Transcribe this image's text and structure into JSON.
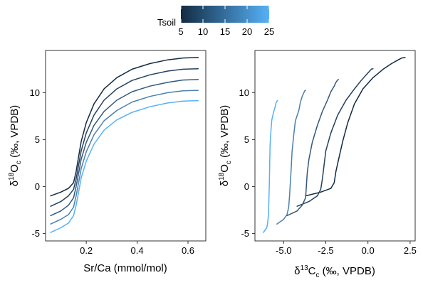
{
  "legend": {
    "title": "Tsoil",
    "ticks": [
      5,
      10,
      15,
      20,
      25
    ],
    "range": [
      5,
      25
    ],
    "colors": [
      "#132b43",
      "#56b1f7"
    ]
  },
  "chart_data": [
    {
      "type": "line",
      "title": "",
      "xlabel": "Sr/Ca (mmol/mol)",
      "ylabel": {
        "prefix": "δ",
        "sup": "18",
        "main": "O",
        "sub": "c",
        "suffix": " (‰, VPDB)"
      },
      "xlim": [
        0.04,
        0.67
      ],
      "ylim": [
        -5.8,
        14.5
      ],
      "xticks": [
        0.2,
        0.4,
        0.6
      ],
      "xtick_labels": [
        "0.2",
        "0.4",
        "0.6"
      ],
      "yticks": [
        -5,
        0,
        5,
        10
      ],
      "ytick_labels": [
        "-5",
        "0",
        "5",
        "10"
      ],
      "grid": false,
      "series": [
        {
          "tsoil": 5,
          "color": "#132b43",
          "x": [
            0.06,
            0.1,
            0.13,
            0.15,
            0.16,
            0.17,
            0.18,
            0.2,
            0.23,
            0.27,
            0.32,
            0.38,
            0.45,
            0.52,
            0.58,
            0.64
          ],
          "y": [
            -1.0,
            -0.6,
            -0.2,
            0.4,
            1.6,
            3.2,
            4.8,
            6.8,
            8.8,
            10.4,
            11.6,
            12.5,
            13.1,
            13.5,
            13.7,
            13.75
          ]
        },
        {
          "tsoil": 10,
          "color": "#23415e",
          "x": [
            0.06,
            0.1,
            0.13,
            0.15,
            0.16,
            0.17,
            0.18,
            0.2,
            0.23,
            0.27,
            0.32,
            0.38,
            0.45,
            0.52,
            0.58,
            0.64
          ],
          "y": [
            -2.1,
            -1.6,
            -1.0,
            -0.3,
            0.8,
            2.3,
            3.8,
            5.7,
            7.6,
            9.2,
            10.4,
            11.3,
            11.9,
            12.3,
            12.5,
            12.55
          ]
        },
        {
          "tsoil": 15,
          "color": "#33587b",
          "x": [
            0.06,
            0.1,
            0.13,
            0.15,
            0.16,
            0.17,
            0.18,
            0.2,
            0.23,
            0.27,
            0.32,
            0.38,
            0.45,
            0.52,
            0.58,
            0.64
          ],
          "y": [
            -3.1,
            -2.6,
            -2.0,
            -1.2,
            0.0,
            1.4,
            2.9,
            4.7,
            6.5,
            8.0,
            9.2,
            10.1,
            10.7,
            11.1,
            11.35,
            11.4
          ]
        },
        {
          "tsoil": 20,
          "color": "#4a80b0",
          "x": [
            0.06,
            0.1,
            0.13,
            0.15,
            0.16,
            0.17,
            0.18,
            0.2,
            0.23,
            0.27,
            0.32,
            0.38,
            0.45,
            0.52,
            0.58,
            0.64
          ],
          "y": [
            -4.0,
            -3.5,
            -3.0,
            -2.2,
            -1.0,
            0.4,
            1.9,
            3.7,
            5.5,
            7.0,
            8.1,
            9.0,
            9.6,
            10.0,
            10.2,
            10.25
          ]
        },
        {
          "tsoil": 25,
          "color": "#56b1f7",
          "x": [
            0.06,
            0.1,
            0.13,
            0.15,
            0.16,
            0.17,
            0.18,
            0.2,
            0.23,
            0.27,
            0.32,
            0.38,
            0.45,
            0.52,
            0.58,
            0.64
          ],
          "y": [
            -4.9,
            -4.4,
            -3.9,
            -3.1,
            -2.0,
            -0.6,
            0.9,
            2.7,
            4.5,
            6.0,
            7.1,
            7.9,
            8.5,
            8.9,
            9.1,
            9.15
          ]
        }
      ]
    },
    {
      "type": "line",
      "title": "",
      "xlabel": {
        "prefix": "δ",
        "sup": "13",
        "main": "C",
        "sub": "c",
        "suffix": " (‰, VPDB)"
      },
      "ylabel": {
        "prefix": "δ",
        "sup": "18",
        "main": "O",
        "sub": "c",
        "suffix": " (‰, VPDB)"
      },
      "xlim": [
        -6.7,
        2.8
      ],
      "ylim": [
        -5.8,
        14.5
      ],
      "xticks": [
        -5.0,
        -2.5,
        0.0,
        2.5
      ],
      "xtick_labels": [
        "-5.0",
        "-2.5",
        "0.0",
        "2.5"
      ],
      "yticks": [
        -5,
        0,
        5,
        10
      ],
      "ytick_labels": [
        "-5",
        "0",
        "5",
        "10"
      ],
      "grid": false,
      "series": [
        {
          "tsoil": 5,
          "color": "#132b43",
          "x": [
            -3.7,
            -2.8,
            -2.2,
            -2.0,
            -1.9,
            -1.7,
            -1.5,
            -1.2,
            -0.8,
            -0.3,
            0.3,
            0.9,
            1.4,
            1.8,
            2.0,
            2.2
          ],
          "y": [
            -1.0,
            -0.6,
            -0.2,
            0.4,
            1.6,
            3.2,
            4.8,
            6.8,
            8.8,
            10.4,
            11.6,
            12.5,
            13.1,
            13.5,
            13.7,
            13.75
          ]
        },
        {
          "tsoil": 10,
          "color": "#23415e",
          "x": [
            -4.2,
            -3.5,
            -3.0,
            -2.8,
            -2.7,
            -2.6,
            -2.5,
            -2.2,
            -1.8,
            -1.3,
            -0.8,
            -0.4,
            -0.1,
            0.1,
            0.2,
            0.3
          ],
          "y": [
            -2.1,
            -1.6,
            -1.0,
            -0.3,
            0.8,
            2.3,
            3.8,
            5.7,
            7.6,
            9.2,
            10.4,
            11.3,
            11.9,
            12.3,
            12.5,
            12.55
          ]
        },
        {
          "tsoil": 15,
          "color": "#33587b",
          "x": [
            -4.8,
            -4.2,
            -3.9,
            -3.7,
            -3.65,
            -3.6,
            -3.5,
            -3.3,
            -3.0,
            -2.7,
            -2.4,
            -2.2,
            -2.0,
            -1.9,
            -1.8,
            -1.75
          ],
          "y": [
            -3.1,
            -2.6,
            -2.0,
            -1.2,
            0.0,
            1.4,
            2.9,
            4.7,
            6.5,
            8.0,
            9.2,
            10.1,
            10.7,
            11.1,
            11.35,
            11.4
          ]
        },
        {
          "tsoil": 20,
          "color": "#4a80b0",
          "x": [
            -5.4,
            -5.0,
            -4.8,
            -4.7,
            -4.65,
            -4.6,
            -4.55,
            -4.5,
            -4.4,
            -4.3,
            -4.1,
            -4.0,
            -3.9,
            -3.8,
            -3.75,
            -3.7
          ],
          "y": [
            -4.0,
            -3.5,
            -3.0,
            -2.2,
            -1.0,
            0.4,
            1.9,
            3.7,
            5.5,
            7.0,
            8.1,
            9.0,
            9.6,
            10.0,
            10.2,
            10.25
          ]
        },
        {
          "tsoil": 25,
          "color": "#56b1f7",
          "x": [
            -6.2,
            -6.0,
            -5.95,
            -5.9,
            -5.88,
            -5.86,
            -5.84,
            -5.82,
            -5.8,
            -5.75,
            -5.7,
            -5.6,
            -5.5,
            -5.45,
            -5.4,
            -5.35
          ],
          "y": [
            -4.9,
            -4.4,
            -3.9,
            -3.1,
            -2.0,
            -0.6,
            0.9,
            2.7,
            4.5,
            6.0,
            7.1,
            7.9,
            8.5,
            8.9,
            9.1,
            9.15
          ]
        }
      ]
    }
  ]
}
